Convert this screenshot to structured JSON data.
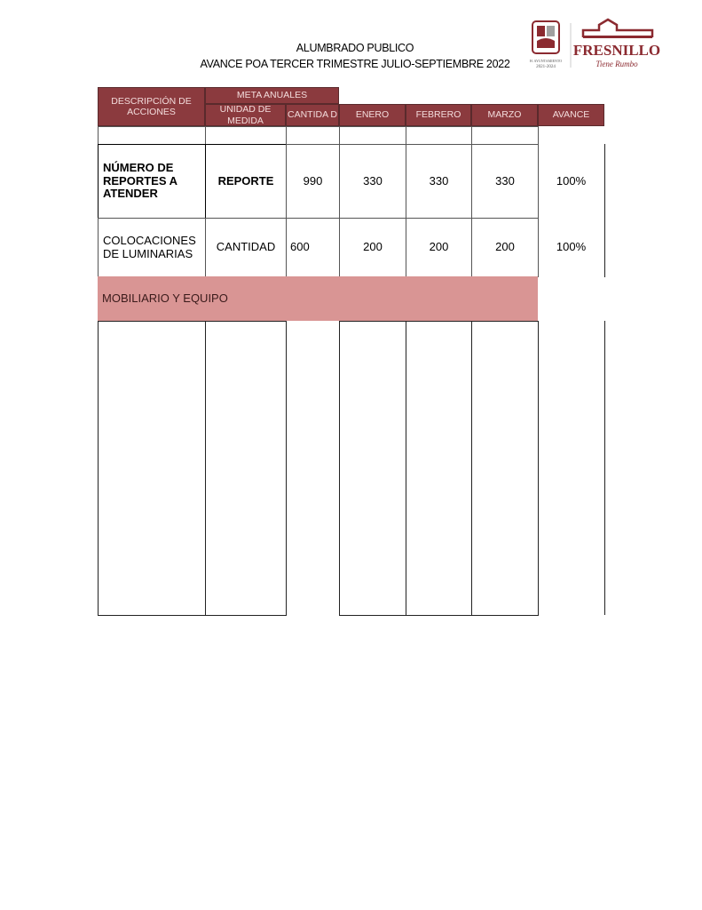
{
  "header": {
    "title": "ALUMBRADO PUBLICO",
    "subtitle": "AVANCE POA  TERCER TRIMESTRE  JULIO-SEPTIEMBRE 2022"
  },
  "logo": {
    "seal_text": "H. AYUNTAMIENTO 2021-2024",
    "brand": "FRESNILLO",
    "tagline": "Tiene Rumbo",
    "brand_color": "#8b2a30"
  },
  "table": {
    "header_color": "#8b3a3e",
    "section_color": "#d99594",
    "columns": {
      "descripcion": "DESCRIPCIÓN DE ACCIONES",
      "meta": "META ANUALES",
      "unidad": "UNIDAD DE MEDIDA",
      "cantidad": "CANTIDA D",
      "enero": "ENERO",
      "febrero": "FEBRERO",
      "marzo": "MARZO",
      "avance": "AVANCE"
    },
    "rows": [
      {
        "descripcion": "NÚMERO DE REPORTES A ATENDER",
        "unidad": "REPORTE",
        "cantidad": "990",
        "enero": "330",
        "febrero": "330",
        "marzo": "330",
        "avance": "100%"
      },
      {
        "descripcion": "COLOCACIONES DE LUMINARIAS",
        "unidad": "CANTIDAD",
        "cantidad": "600",
        "enero": "200",
        "febrero": "200",
        "marzo": "200",
        "avance": "100%"
      }
    ],
    "section": "MOBILIARIO Y EQUIPO"
  }
}
